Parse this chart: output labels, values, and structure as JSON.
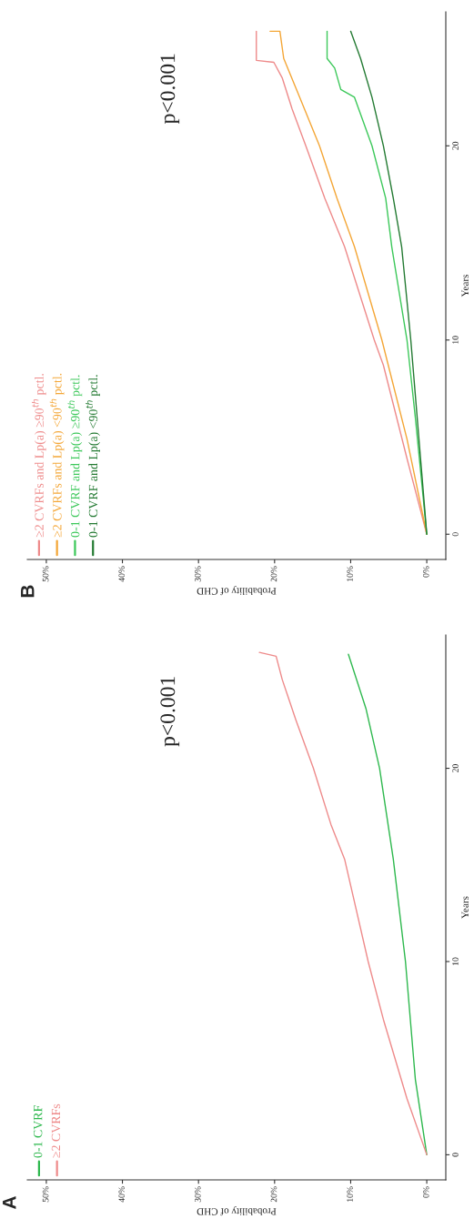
{
  "chart_data": [
    {
      "type": "line",
      "title": "B",
      "xlabel": "Probability of CHD",
      "ylabel": "Years",
      "annotations": [
        "p<0.001"
      ],
      "legend": "bottom left",
      "grid": false,
      "ylim": [
        -1.3,
        26.9
      ],
      "yticks": [
        0,
        10,
        20
      ],
      "xlim": [
        52.5,
        -2.5
      ],
      "xticks": [
        {
          "value": 0,
          "label": "0%"
        },
        {
          "value": 10,
          "label": "10%"
        },
        {
          "value": 20,
          "label": "20%"
        },
        {
          "value": 30,
          "label": "30%"
        },
        {
          "value": 40,
          "label": "40%"
        },
        {
          "value": 50,
          "label": "50%"
        }
      ],
      "series": [
        {
          "name": "≥2 CVRFs and Lp(a) ≥90$^{th}$ pctl.",
          "color": "#ee8a8a",
          "values": [
            0,
            3.9,
            8.7,
            10,
            14.8,
            17.3,
            20,
            21.9,
            23.5,
            24.3,
            24.4,
            25.9
          ],
          "x": [
            0,
            2.6,
            5.7,
            6.9,
            10.8,
            13.4,
            15.9,
            17.7,
            19.0,
            20.1,
            22.4,
            22.4
          ]
        },
        {
          "name": "≥2 CVRFs and Lp(a) <90$^{th}$ pctl.",
          "color": "#f4a636",
          "values": [
            0,
            4.9,
            10,
            14.8,
            17.3,
            20,
            22.5,
            24.5,
            25.9,
            25.9
          ],
          "x": [
            0,
            2.6,
            5.9,
            9.5,
            11.8,
            14.1,
            16.7,
            18.8,
            19.3,
            20.6
          ]
        },
        {
          "name": "0-1 CVRF and Lp(a) ≥90$^{th}$ pctl.",
          "color": "#3cc85a",
          "values": [
            0,
            6.0,
            10,
            14.8,
            17.3,
            20,
            22.5,
            22.9,
            24.0,
            24.5,
            25.9
          ],
          "x": [
            0,
            1.5,
            2.6,
            4.6,
            5.4,
            7.2,
            9.5,
            11.3,
            12.1,
            13.1,
            13.1
          ]
        },
        {
          "name": "0-1 CVRF and Lp(a) <90$^{th}$ pctl.",
          "color": "#237a32",
          "values": [
            0,
            10,
            14.8,
            17.3,
            20,
            22.5,
            24.5,
            25.9
          ],
          "x": [
            0,
            2.1,
            3.3,
            4.4,
            5.7,
            7.2,
            8.7,
            10.0
          ]
        }
      ]
    },
    {
      "type": "line",
      "title": "A",
      "xlabel": "Probability of CHD",
      "ylabel": "Years",
      "annotations": [
        "p<0.001"
      ],
      "legend": "bottom left",
      "grid": false,
      "ylim": [
        -1.3,
        26.9
      ],
      "yticks": [
        0,
        10,
        20
      ],
      "xlim": [
        52.5,
        -2.5
      ],
      "xticks": [
        {
          "value": 0,
          "label": "0%"
        },
        {
          "value": 10,
          "label": "10%"
        },
        {
          "value": 20,
          "label": "20%"
        },
        {
          "value": 30,
          "label": "30%"
        },
        {
          "value": 40,
          "label": "40%"
        },
        {
          "value": 50,
          "label": "50%"
        }
      ],
      "series": [
        {
          "name": "0-1 CVRF",
          "color": "#2db84d",
          "values": [
            0,
            3.9,
            10,
            15.3,
            20,
            23.1,
            25.9
          ],
          "x": [
            0,
            1.5,
            2.8,
            4.4,
            6.2,
            8.0,
            10.3
          ]
        },
        {
          "name": "≥2 CVRFs",
          "color": "#ee8a8a",
          "values": [
            0,
            2.9,
            7.0,
            10,
            15.3,
            17.1,
            20,
            22.5,
            24.6,
            25.8,
            26.0
          ],
          "x": [
            0,
            2.6,
            5.7,
            7.7,
            10.8,
            12.6,
            14.9,
            17.2,
            19.0,
            19.8,
            22.0
          ]
        }
      ]
    }
  ]
}
